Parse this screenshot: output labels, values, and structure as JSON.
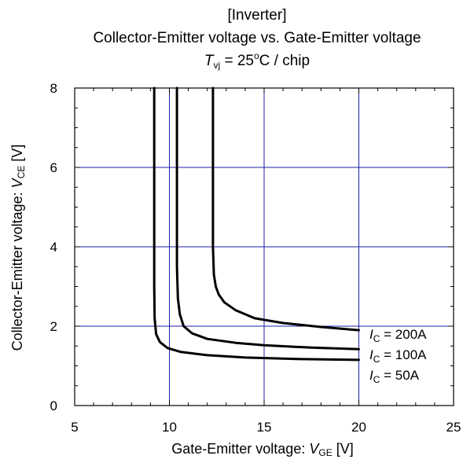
{
  "chart_data": {
    "type": "line",
    "title_lines": [
      "[Inverter]",
      "Collector-Emitter voltage vs. Gate-Emitter voltage"
    ],
    "condition": {
      "symbol": "T",
      "subscript": "vj",
      "text": " = 25",
      "sup": "o",
      "tail": "C / chip"
    },
    "xlabel": {
      "text": "Gate-Emitter voltage: ",
      "symbol": "V",
      "subscript": "GE",
      "unit": " [V]"
    },
    "ylabel": {
      "text": "Collector-Emitter voltage: ",
      "symbol": "V",
      "subscript": "CE",
      "unit": " [V]"
    },
    "xlim": [
      5,
      25
    ],
    "ylim": [
      0,
      8
    ],
    "xticks": [
      "5",
      "10",
      "15",
      "20",
      "25"
    ],
    "yticks": [
      "0",
      "2",
      "4",
      "6",
      "8"
    ],
    "grid": true,
    "grid_color": "#1f1fa8",
    "series": [
      {
        "label": {
          "symbol": "I",
          "subscript": "C",
          "text": " = 200A"
        },
        "x": [
          12.3,
          12.3,
          12.35,
          12.45,
          12.6,
          12.9,
          13.5,
          14.5,
          16,
          18,
          20
        ],
        "y": [
          8,
          4.0,
          3.3,
          3.0,
          2.8,
          2.6,
          2.4,
          2.2,
          2.08,
          1.98,
          1.9
        ]
      },
      {
        "label": {
          "symbol": "I",
          "subscript": "C",
          "text": " = 100A"
        },
        "x": [
          10.4,
          10.4,
          10.45,
          10.55,
          10.75,
          11.2,
          12,
          13.5,
          15,
          17.5,
          20
        ],
        "y": [
          8,
          3.5,
          2.7,
          2.3,
          2.0,
          1.82,
          1.68,
          1.58,
          1.52,
          1.46,
          1.42
        ]
      },
      {
        "label": {
          "symbol": "I",
          "subscript": "C",
          "text": " = 50A"
        },
        "x": [
          9.2,
          9.2,
          9.22,
          9.3,
          9.5,
          9.9,
          10.6,
          12,
          14,
          17,
          20
        ],
        "y": [
          8,
          3.0,
          2.2,
          1.8,
          1.6,
          1.45,
          1.35,
          1.27,
          1.21,
          1.17,
          1.15
        ]
      }
    ]
  }
}
